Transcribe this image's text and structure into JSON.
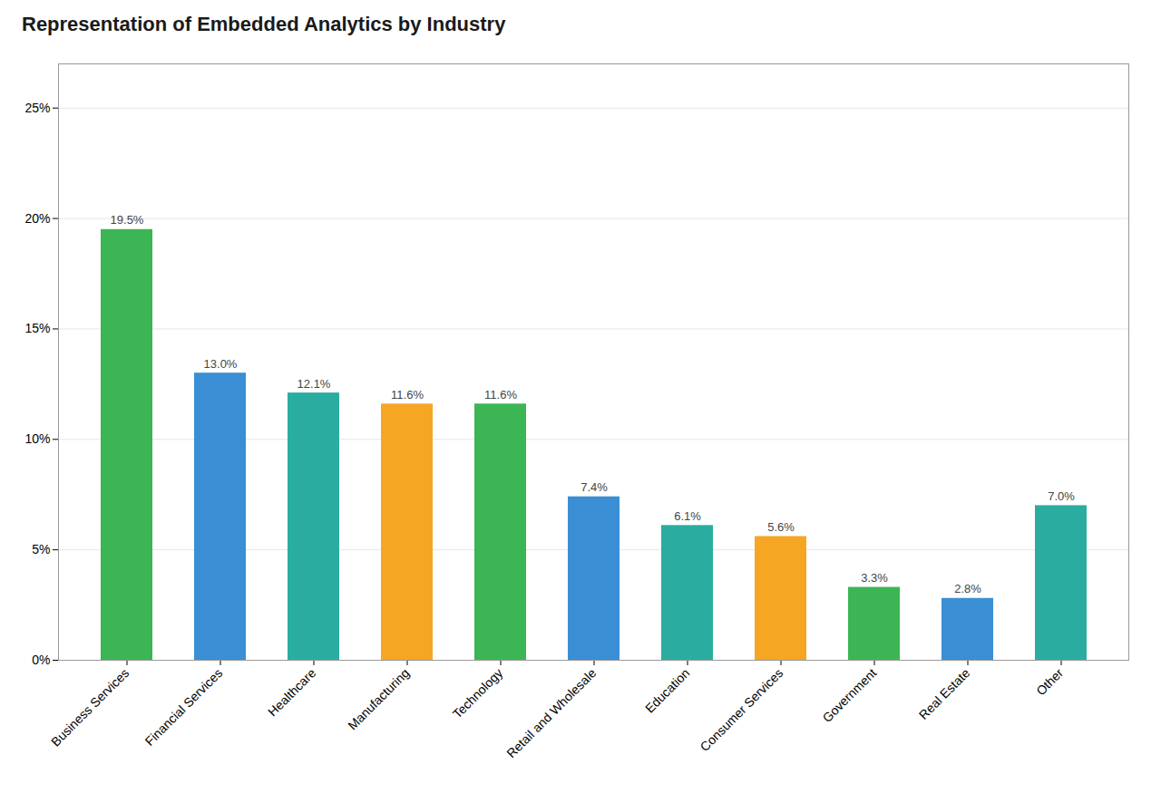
{
  "chart_data": {
    "type": "bar",
    "title": "Representation of Embedded Analytics by Industry",
    "categories": [
      "Business Services",
      "Financial Services",
      "Healthcare",
      "Manufacturing",
      "Technology",
      "Retail and Wholesale",
      "Education",
      "Consumer Services",
      "Government",
      "Real Estate",
      "Other"
    ],
    "values": [
      19.5,
      13.0,
      12.1,
      11.6,
      11.6,
      7.4,
      6.1,
      5.6,
      3.3,
      2.8,
      7.0
    ],
    "value_labels": [
      "19.5%",
      "13.0%",
      "12.1%",
      "11.6%",
      "11.6%",
      "7.4%",
      "6.1%",
      "5.6%",
      "3.3%",
      "2.8%",
      "7.0%"
    ],
    "data_labels": true,
    "colors": [
      "#3cb554",
      "#3a8fd4",
      "#2aada0",
      "#f5a623",
      "#3cb554",
      "#3a8fd4",
      "#2aada0",
      "#f5a623",
      "#3cb554",
      "#3a8fd4",
      "#2aada0"
    ],
    "ylim": [
      0,
      27
    ],
    "yticks": [
      {
        "value": 0,
        "label": "0%"
      },
      {
        "value": 5,
        "label": "5%"
      },
      {
        "value": 10,
        "label": "10%"
      },
      {
        "value": 15,
        "label": "15%"
      },
      {
        "value": 20,
        "label": "20%"
      },
      {
        "value": 25,
        "label": "25%"
      }
    ],
    "grid": true
  }
}
